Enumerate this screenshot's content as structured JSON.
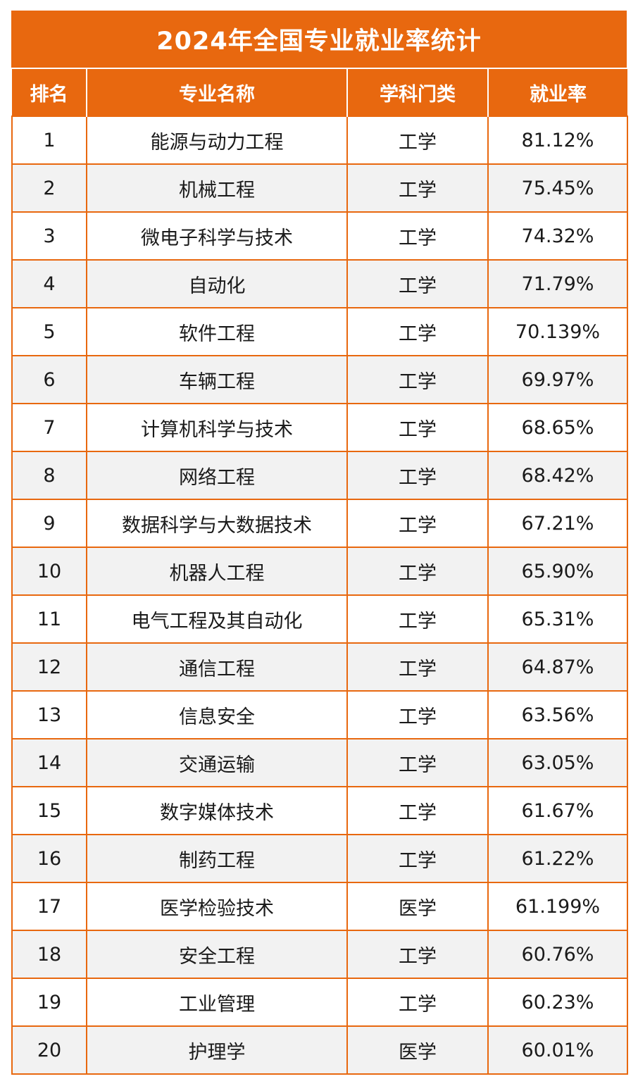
{
  "title": "2024年全国专业就业率统计",
  "headers": [
    "排名",
    "专业名称",
    "学科门类",
    "就业率"
  ],
  "rows": [
    {
      "rank": "1",
      "name": "能源与动力工程",
      "category": "工学",
      "rate": "81.12%"
    },
    {
      "rank": "2",
      "name": "机械工程",
      "category": "工学",
      "rate": "75.45%"
    },
    {
      "rank": "3",
      "name": "微电子科学与技术",
      "category": "工学",
      "rate": "74.32%"
    },
    {
      "rank": "4",
      "name": "自动化",
      "category": "工学",
      "rate": "71.79%"
    },
    {
      "rank": "5",
      "name": "软件工程",
      "category": "工学",
      "rate": "70.139%"
    },
    {
      "rank": "6",
      "name": "车辆工程",
      "category": "工学",
      "rate": "69.97%"
    },
    {
      "rank": "7",
      "name": "计算机科学与技术",
      "category": "工学",
      "rate": "68.65%"
    },
    {
      "rank": "8",
      "name": "网络工程",
      "category": "工学",
      "rate": "68.42%"
    },
    {
      "rank": "9",
      "name": "数据科学与大数据技术",
      "category": "工学",
      "rate": "67.21%"
    },
    {
      "rank": "10",
      "name": "机器人工程",
      "category": "工学",
      "rate": "65.90%"
    },
    {
      "rank": "11",
      "name": "电气工程及其自动化",
      "category": "工学",
      "rate": "65.31%"
    },
    {
      "rank": "12",
      "name": "通信工程",
      "category": "工学",
      "rate": "64.87%"
    },
    {
      "rank": "13",
      "name": "信息安全",
      "category": "工学",
      "rate": "63.56%"
    },
    {
      "rank": "14",
      "name": "交通运输",
      "category": "工学",
      "rate": "63.05%"
    },
    {
      "rank": "15",
      "name": "数字媒体技术",
      "category": "工学",
      "rate": "61.67%"
    },
    {
      "rank": "16",
      "name": "制药工程",
      "category": "工学",
      "rate": "61.22%"
    },
    {
      "rank": "17",
      "name": "医学检验技术",
      "category": "医学",
      "rate": "61.199%"
    },
    {
      "rank": "18",
      "name": "安全工程",
      "category": "工学",
      "rate": "60.76%"
    },
    {
      "rank": "19",
      "name": "工业管理",
      "category": "工学",
      "rate": "60.23%"
    },
    {
      "rank": "20",
      "name": "护理学",
      "category": "医学",
      "rate": "60.01%"
    }
  ],
  "colors": {
    "accent": "#e8680f",
    "stripe": "#f2f2f2"
  }
}
